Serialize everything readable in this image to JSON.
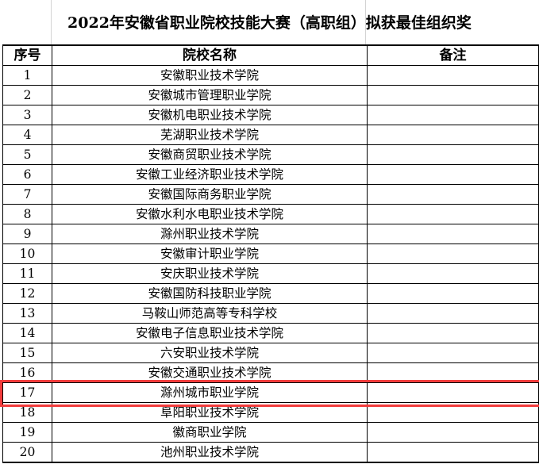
{
  "title": "2022年安徽省职业院校技能大赛（高职组）拟获最佳组织奖",
  "headers": [
    "序号",
    "院校名称",
    "备注"
  ],
  "rows": [
    {
      "no": "1",
      "name": "安徽职业技术学院",
      "note": ""
    },
    {
      "no": "2",
      "name": "安徽城市管理职业学院",
      "note": ""
    },
    {
      "no": "3",
      "name": "安徽机电职业技术学院",
      "note": ""
    },
    {
      "no": "4",
      "name": "芜湖职业技术学院",
      "note": ""
    },
    {
      "no": "5",
      "name": "安徽商贸职业技术学院",
      "note": ""
    },
    {
      "no": "6",
      "name": "安徽工业经济职业技术学院",
      "note": ""
    },
    {
      "no": "7",
      "name": "安徽国际商务职业学院",
      "note": ""
    },
    {
      "no": "8",
      "name": "安徽水利水电职业技术学院",
      "note": ""
    },
    {
      "no": "9",
      "name": "滁州职业技术学院",
      "note": ""
    },
    {
      "no": "10",
      "name": "安徽审计职业学院",
      "note": ""
    },
    {
      "no": "11",
      "name": "安庆职业技术学院",
      "note": ""
    },
    {
      "no": "12",
      "name": "安徽国防科技职业学院",
      "note": ""
    },
    {
      "no": "13",
      "name": "马鞍山师范高等专科学校",
      "note": ""
    },
    {
      "no": "14",
      "name": "安徽电子信息职业技术学院",
      "note": ""
    },
    {
      "no": "15",
      "name": "六安职业技术学院",
      "note": ""
    },
    {
      "no": "16",
      "name": "安徽交通职业技术学院",
      "note": ""
    },
    {
      "no": "17",
      "name": "滁州城市职业学院",
      "note": ""
    },
    {
      "no": "18",
      "name": "阜阳职业技术学院",
      "note": ""
    },
    {
      "no": "19",
      "name": "徽商职业学院",
      "note": ""
    },
    {
      "no": "20",
      "name": "池州职业技术学院",
      "note": ""
    }
  ],
  "highlight": {
    "row": "17",
    "color": "#f23c3c"
  }
}
